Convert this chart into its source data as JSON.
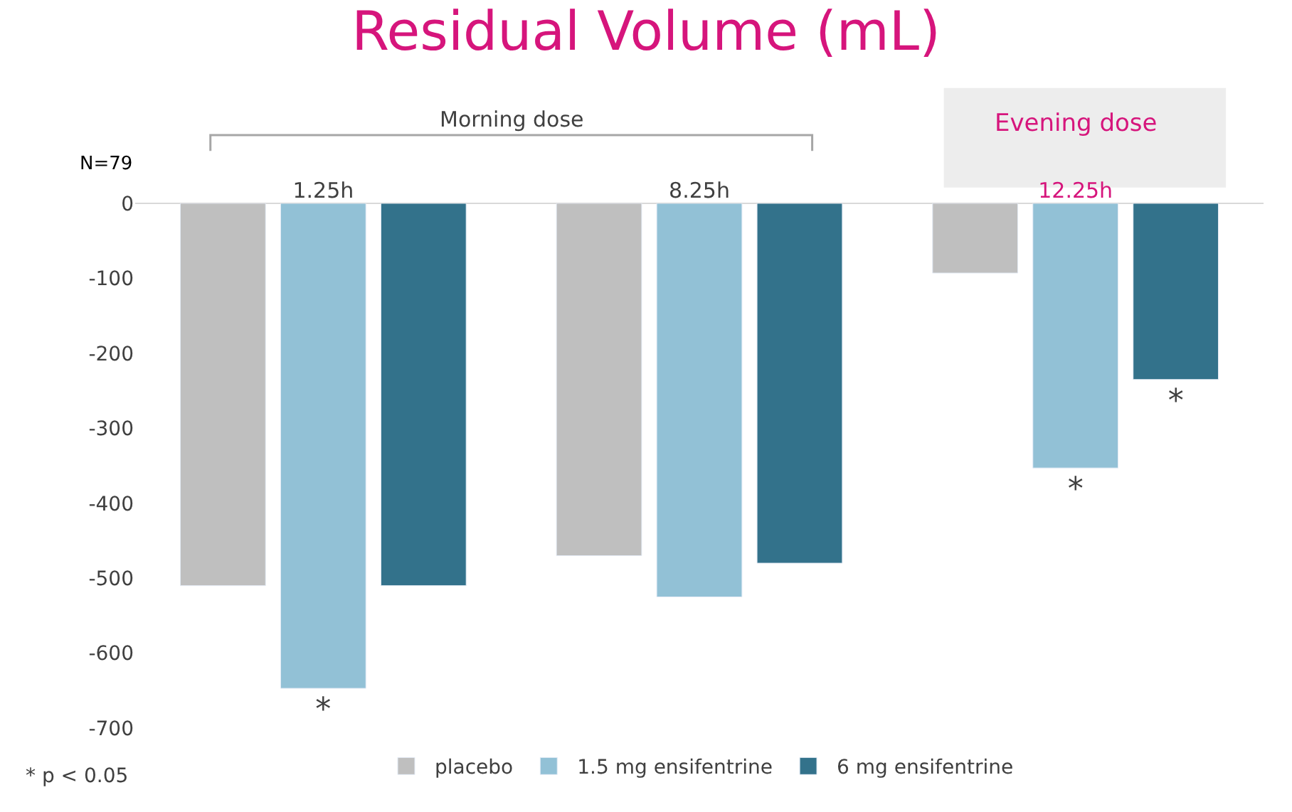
{
  "chart_data": {
    "type": "bar",
    "title": "Residual Volume (mL)",
    "categories": [
      "1.25h",
      "8.25h",
      "12.25h"
    ],
    "series": [
      {
        "name": "placebo",
        "color": "#bfbfbf",
        "values": [
          -510,
          -470,
          -93
        ]
      },
      {
        "name": "1.5 mg ensifentrine",
        "color": "#92c1d6",
        "values": [
          -647,
          -525,
          -353
        ],
        "value_labels": [
          "*",
          null,
          "*"
        ]
      },
      {
        "name": "6 mg ensifentrine",
        "color": "#33728b",
        "values": [
          -510,
          -480,
          -235
        ],
        "value_labels": [
          null,
          null,
          "*"
        ]
      }
    ],
    "ylim": [
      -700,
      0
    ],
    "yticks": [
      0,
      -100,
      -200,
      -300,
      -400,
      -500,
      -600,
      -700
    ],
    "legend": "bottom",
    "annotations": [
      "Morning dose",
      "Evening dose",
      "N=79",
      "* p < 0.05"
    ]
  }
}
